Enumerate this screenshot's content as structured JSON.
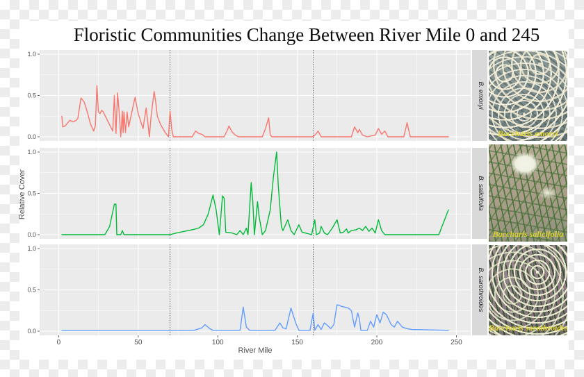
{
  "title": "Floristic Communities Change Between River Mile 0 and 245",
  "theme": {
    "figure_bg": "#FFFFFF",
    "panel_bg": "#EBEBEB",
    "strip_bg": "#D9D9D9",
    "grid_color": "#FFFFFF",
    "axis_text_color": "#4D4D4D",
    "tick_color": "#333333",
    "reference_line_color": "#3F3F3F",
    "title_color": "#0D0D0D",
    "checker_color": "#ECECEC"
  },
  "photos": [
    {
      "caption": "Baccharis emoryi",
      "caption_color": "#DDD32B",
      "alt": "shrub with cream-white flower clusters and gray-green foliage"
    },
    {
      "caption": "Baccharis salicifolia",
      "caption_color": "#DDD32B",
      "alt": "green willow-like leaves with white flower clusters on tan background"
    },
    {
      "caption": "Baccharis sarothroides",
      "caption_color": "#DDD32B",
      "alt": "broom-like green stems with small cream buds on mauve background"
    }
  ],
  "chart_data": {
    "type": "line",
    "title": "Floristic Communities Change Between River Mile 0 and 245",
    "xlabel": "River Mile",
    "ylabel": "Relative Cover",
    "xlim": [
      0,
      250
    ],
    "ylim": [
      0,
      1
    ],
    "x_ticks": [
      0,
      50,
      100,
      150,
      200,
      250
    ],
    "x_minor_ticks": [
      25,
      75,
      125,
      175,
      225
    ],
    "y_ticks": [
      1.0,
      0.5,
      0.0
    ],
    "y_minor_ticks": [
      0.75,
      0.25
    ],
    "reference_lines_x": [
      70,
      160
    ],
    "grid": "white major+minor gridlines on gray panels",
    "legend_position": "none; species shown as right-side facet strips",
    "facets": [
      {
        "label": "B. emoryi",
        "color": "#F8766D",
        "points": [
          [
            2,
            0.25
          ],
          [
            2.5,
            0.12
          ],
          [
            4,
            0.13
          ],
          [
            7,
            0.2
          ],
          [
            9,
            0.18
          ],
          [
            11,
            0.2
          ],
          [
            12,
            0.22
          ],
          [
            14,
            0.47
          ],
          [
            16,
            0.42
          ],
          [
            18,
            0.3
          ],
          [
            20,
            0.15
          ],
          [
            22,
            0.07
          ],
          [
            23,
            0.13
          ],
          [
            24,
            0.62
          ],
          [
            25,
            0.3
          ],
          [
            26,
            0.28
          ],
          [
            27,
            0.32
          ],
          [
            28,
            0.3
          ],
          [
            34,
            0.07
          ],
          [
            35,
            0.5
          ],
          [
            36,
            0.04
          ],
          [
            37,
            0.53
          ],
          [
            38,
            0.3
          ],
          [
            39,
            0.0
          ],
          [
            40,
            0.31
          ],
          [
            40.5,
            0.05
          ],
          [
            41,
            0.3
          ],
          [
            42,
            0.05
          ],
          [
            43,
            0.3
          ],
          [
            44,
            0.12
          ],
          [
            46,
            0.3
          ],
          [
            48,
            0.48
          ],
          [
            50,
            0.28
          ],
          [
            53,
            0.1
          ],
          [
            55,
            0.35
          ],
          [
            57,
            0.0
          ],
          [
            58,
            0.23
          ],
          [
            60,
            0.55
          ],
          [
            61,
            0.42
          ],
          [
            62,
            0.25
          ],
          [
            64,
            0.15
          ],
          [
            67,
            0.05
          ],
          [
            69,
            0.0
          ],
          [
            70,
            0.31
          ],
          [
            71,
            0.1
          ],
          [
            72,
            0.0
          ],
          [
            84,
            0.0
          ],
          [
            86,
            0.07
          ],
          [
            88,
            0.04
          ],
          [
            90,
            0.03
          ],
          [
            92,
            0.0
          ],
          [
            104,
            0.0
          ],
          [
            106,
            0.08
          ],
          [
            107,
            0.13
          ],
          [
            109,
            0.06
          ],
          [
            111,
            0.02
          ],
          [
            113,
            0.0
          ],
          [
            128,
            0.0
          ],
          [
            130,
            0.1
          ],
          [
            132,
            0.23
          ],
          [
            133,
            0.02
          ],
          [
            134,
            0.0
          ],
          [
            160,
            0.0
          ],
          [
            162,
            0.04
          ],
          [
            163,
            0.07
          ],
          [
            165,
            0.0
          ],
          [
            184,
            0.0
          ],
          [
            186,
            0.12
          ],
          [
            188,
            0.05
          ],
          [
            189,
            0.09
          ],
          [
            191,
            0.02
          ],
          [
            194,
            0.0
          ],
          [
            199,
            0.02
          ],
          [
            201,
            0.1
          ],
          [
            203,
            0.03
          ],
          [
            205,
            0.07
          ],
          [
            207,
            0.0
          ],
          [
            217,
            0.0
          ],
          [
            219,
            0.17
          ],
          [
            221,
            0.0
          ],
          [
            245,
            0.0
          ]
        ]
      },
      {
        "label": "B. salicifolia",
        "color": "#00BA38",
        "points": [
          [
            2,
            0.0
          ],
          [
            29,
            0.0
          ],
          [
            32,
            0.1
          ],
          [
            35,
            0.37
          ],
          [
            36,
            0.37
          ],
          [
            36.5,
            0.0
          ],
          [
            39,
            0.0
          ],
          [
            40,
            0.05
          ],
          [
            41,
            0.0
          ],
          [
            70,
            0.0
          ],
          [
            74,
            0.02
          ],
          [
            79,
            0.04
          ],
          [
            84,
            0.06
          ],
          [
            88,
            0.08
          ],
          [
            91,
            0.12
          ],
          [
            94,
            0.25
          ],
          [
            97,
            0.48
          ],
          [
            99,
            0.3
          ],
          [
            101,
            0.0
          ],
          [
            103,
            0.47
          ],
          [
            104,
            0.44
          ],
          [
            105,
            0.03
          ],
          [
            109,
            0.02
          ],
          [
            112,
            0.0
          ],
          [
            114,
            0.05
          ],
          [
            116,
            0.0
          ],
          [
            118,
            0.08
          ],
          [
            119,
            0.0
          ],
          [
            121,
            0.63
          ],
          [
            122,
            0.4
          ],
          [
            123,
            0.0
          ],
          [
            125,
            0.4
          ],
          [
            126,
            0.22
          ],
          [
            128,
            0.0
          ],
          [
            130,
            0.05
          ],
          [
            133,
            0.3
          ],
          [
            135,
            0.7
          ],
          [
            137,
            1.0
          ],
          [
            138,
            0.6
          ],
          [
            140,
            0.1
          ],
          [
            141,
            0.05
          ],
          [
            144,
            0.18
          ],
          [
            146,
            0.05
          ],
          [
            148,
            0.0
          ],
          [
            151,
            0.12
          ],
          [
            153,
            0.03
          ],
          [
            155,
            0.02
          ],
          [
            159,
            0.0
          ],
          [
            161,
            0.18
          ],
          [
            162,
            0.0
          ],
          [
            164,
            0.02
          ],
          [
            165,
            0.1
          ],
          [
            167,
            0.02
          ],
          [
            169,
            0.0
          ],
          [
            172,
            0.08
          ],
          [
            175,
            0.18
          ],
          [
            177,
            0.02
          ],
          [
            179,
            0.03
          ],
          [
            181,
            0.07
          ],
          [
            182,
            0.02
          ],
          [
            184,
            0.05
          ],
          [
            187,
            0.06
          ],
          [
            189,
            0.08
          ],
          [
            191,
            0.05
          ],
          [
            193,
            0.1
          ],
          [
            195,
            0.04
          ],
          [
            197,
            0.08
          ],
          [
            199,
            0.02
          ],
          [
            201,
            0.18
          ],
          [
            203,
            0.05
          ],
          [
            205,
            0.0
          ],
          [
            239,
            0.0
          ],
          [
            245,
            0.3
          ]
        ]
      },
      {
        "label": "B. sarothroides",
        "color": "#619CFF",
        "points": [
          [
            2,
            0.01
          ],
          [
            85,
            0.01
          ],
          [
            90,
            0.04
          ],
          [
            92,
            0.08
          ],
          [
            95,
            0.03
          ],
          [
            97,
            0.01
          ],
          [
            114,
            0.01
          ],
          [
            116,
            0.29
          ],
          [
            118,
            0.05
          ],
          [
            120,
            0.01
          ],
          [
            136,
            0.01
          ],
          [
            139,
            0.1
          ],
          [
            141,
            0.04
          ],
          [
            143,
            0.03
          ],
          [
            146,
            0.28
          ],
          [
            149,
            0.1
          ],
          [
            151,
            0.01
          ],
          [
            158,
            0.01
          ],
          [
            160,
            0.22
          ],
          [
            161,
            0.01
          ],
          [
            163,
            0.08
          ],
          [
            165,
            0.02
          ],
          [
            167,
            0.1
          ],
          [
            169,
            0.07
          ],
          [
            171,
            0.03
          ],
          [
            173,
            0.08
          ],
          [
            175,
            0.32
          ],
          [
            178,
            0.3
          ],
          [
            182,
            0.28
          ],
          [
            184,
            0.25
          ],
          [
            186,
            0.05
          ],
          [
            188,
            0.22
          ],
          [
            189,
            0.15
          ],
          [
            190,
            0.01
          ],
          [
            194,
            0.01
          ],
          [
            196,
            0.12
          ],
          [
            198,
            0.05
          ],
          [
            200,
            0.2
          ],
          [
            202,
            0.1
          ],
          [
            204,
            0.23
          ],
          [
            206,
            0.2
          ],
          [
            209,
            0.08
          ],
          [
            211,
            0.05
          ],
          [
            213,
            0.12
          ],
          [
            216,
            0.05
          ],
          [
            219,
            0.03
          ],
          [
            222,
            0.02
          ],
          [
            245,
            0.01
          ]
        ]
      }
    ]
  }
}
